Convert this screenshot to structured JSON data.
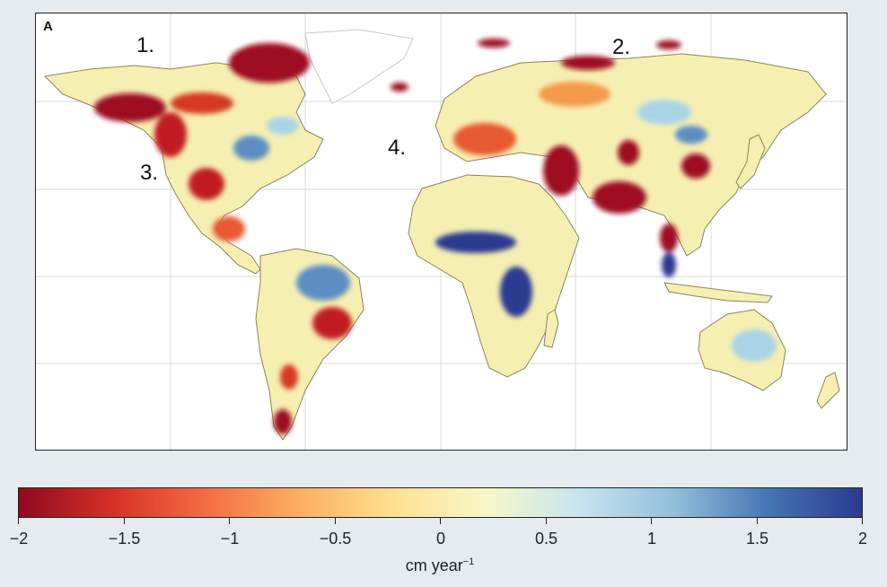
{
  "map": {
    "panel_letter": "A",
    "region_labels": [
      "1.",
      "2.",
      "3.",
      "4."
    ],
    "graticule_lon": [
      -120,
      -60,
      0,
      60,
      120
    ],
    "graticule_lat": [
      -60,
      -30,
      0,
      30,
      60
    ],
    "colors": {
      "land_neutral": "#f6efb2",
      "land_border": "#8a8658",
      "ocean": "#ffffff",
      "ice_outline": "#c8c8c8",
      "strong_loss": "#9e0a21",
      "loss": "#d63b24",
      "mild_loss": "#f39a4c",
      "mild_gain": "#a9d4e6",
      "gain": "#5b8ec4",
      "strong_gain": "#2a3b90"
    }
  },
  "colorbar": {
    "min": -2,
    "max": 2,
    "ticks": [
      "−2",
      "−1.5",
      "−1",
      "−0.5",
      "0",
      "0.5",
      "1",
      "1.5",
      "2"
    ],
    "tick_values": [
      -2,
      -1.5,
      -1,
      -0.5,
      0,
      0.5,
      1,
      1.5,
      2
    ],
    "unit_base": "cm year",
    "unit_exp": "−1",
    "stops": [
      "#8e0a20",
      "#d73027",
      "#f46d43",
      "#fdae61",
      "#fee090",
      "#f7f7c8",
      "#c6e3ef",
      "#91bfdb",
      "#4575b4",
      "#2b3a8f"
    ]
  }
}
